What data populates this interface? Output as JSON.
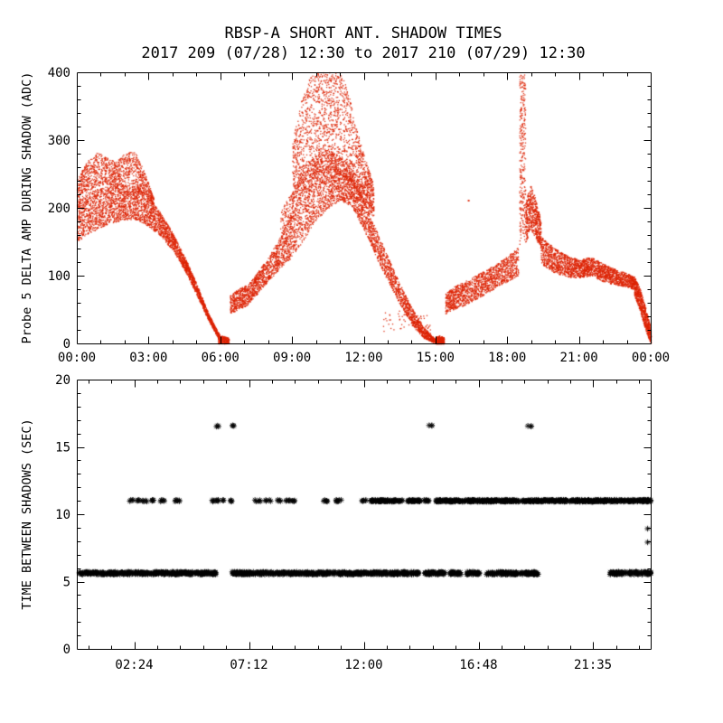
{
  "figure": {
    "background": "#ffffff",
    "axis_color": "#000000"
  },
  "chart_data": [
    {
      "type": "scatter",
      "panel": "top",
      "title": "RBSP-A SHORT ANT. SHADOW TIMES",
      "subtitle": "2017 209 (07/28) 12:30 to 2017 210 (07/29) 12:30",
      "ylabel": "Probe 5 DELTA AMP DURING SHADOW (ADC)",
      "xlabel": "",
      "xlim": [
        0,
        24
      ],
      "ylim": [
        0,
        400
      ],
      "xticks": [
        {
          "value": 0,
          "label": "00:00"
        },
        {
          "value": 3,
          "label": "03:00"
        },
        {
          "value": 6,
          "label": "06:00"
        },
        {
          "value": 9,
          "label": "09:00"
        },
        {
          "value": 12,
          "label": "12:00"
        },
        {
          "value": 15,
          "label": "15:00"
        },
        {
          "value": 18,
          "label": "18:00"
        },
        {
          "value": 21,
          "label": "21:00"
        },
        {
          "value": 24,
          "label": "00:00"
        }
      ],
      "yticks": [
        {
          "value": 0,
          "label": "0"
        },
        {
          "value": 100,
          "label": "100"
        },
        {
          "value": 200,
          "label": "200"
        },
        {
          "value": 300,
          "label": "300"
        },
        {
          "value": 400,
          "label": "400"
        }
      ],
      "x_minor_step": 1,
      "y_minor_step": 20,
      "marker": "dot",
      "color": "#dd2200",
      "bands": [
        {
          "x": [
            0,
            0.5,
            1,
            1.5,
            2,
            2.5,
            3,
            3.5,
            4,
            4.5,
            5,
            5.5,
            6
          ],
          "lo": [
            150,
            163,
            172,
            178,
            183,
            183,
            173,
            158,
            138,
            108,
            72,
            34,
            2
          ],
          "hi": [
            213,
            224,
            230,
            234,
            234,
            232,
            218,
            192,
            163,
            128,
            88,
            44,
            10
          ],
          "n": 3200
        },
        {
          "x": [
            0,
            0.4,
            0.8,
            1.2,
            1.6,
            2,
            2.4,
            2.8,
            3.2
          ],
          "lo": [
            213,
            224,
            232,
            236,
            234,
            232,
            230,
            220,
            205
          ],
          "hi": [
            242,
            268,
            284,
            276,
            268,
            281,
            285,
            255,
            215
          ],
          "n": 1100
        },
        {
          "x": [
            5.9,
            6.1,
            6.35
          ],
          "lo": [
            0,
            0,
            0
          ],
          "hi": [
            10,
            12,
            8
          ],
          "n": 240
        },
        {
          "x": [
            6.4,
            6.7,
            7.05
          ],
          "lo": [
            44,
            50,
            55
          ],
          "hi": [
            72,
            80,
            86
          ],
          "n": 330
        },
        {
          "x": [
            7.05,
            7.5,
            8,
            8.5,
            9,
            9.5,
            10,
            10.5,
            11,
            11.5,
            12,
            12.5,
            13,
            13.5,
            14,
            14.5,
            15
          ],
          "lo": [
            55,
            72,
            92,
            112,
            128,
            155,
            182,
            200,
            212,
            202,
            168,
            128,
            92,
            58,
            28,
            8,
            0
          ],
          "hi": [
            82,
            103,
            128,
            158,
            196,
            236,
            258,
            263,
            258,
            243,
            213,
            168,
            128,
            88,
            53,
            24,
            6
          ],
          "n": 3800
        },
        {
          "x": [
            8.5,
            9,
            9.5,
            10,
            10.5,
            11,
            11.5,
            12,
            12.4
          ],
          "lo": [
            150,
            188,
            228,
            250,
            256,
            250,
            235,
            205,
            185
          ],
          "hi": [
            195,
            225,
            262,
            278,
            288,
            278,
            258,
            228,
            205
          ],
          "n": 700
        },
        {
          "x": [
            9,
            9.3,
            9.7,
            10,
            10.3,
            10.7,
            11,
            11.3,
            11.6,
            12,
            12.4
          ],
          "lo": [
            200,
            225,
            252,
            262,
            268,
            268,
            262,
            248,
            232,
            212,
            195
          ],
          "hi": [
            295,
            350,
            392,
            400,
            400,
            400,
            400,
            378,
            328,
            278,
            235
          ],
          "n": 1600
        },
        {
          "x": [
            12.8,
            13.6,
            14.9
          ],
          "lo": [
            18,
            22,
            14
          ],
          "hi": [
            48,
            52,
            40
          ],
          "n": 60
        },
        {
          "x": [
            15,
            15.15,
            15.35
          ],
          "lo": [
            0,
            0,
            0
          ],
          "hi": [
            10,
            12,
            9
          ],
          "n": 280
        },
        {
          "x": [
            15.4,
            15.75,
            16.1
          ],
          "lo": [
            44,
            50,
            55
          ],
          "hi": [
            74,
            84,
            90
          ],
          "n": 340
        },
        {
          "x": [
            16.1,
            16.6,
            17.1,
            17.6,
            18.1,
            18.45
          ],
          "lo": [
            55,
            64,
            74,
            84,
            94,
            100
          ],
          "hi": [
            90,
            99,
            109,
            119,
            132,
            142
          ],
          "n": 1000
        },
        {
          "x": [
            18.5,
            18.62,
            18.75
          ],
          "lo": [
            145,
            160,
            150
          ],
          "hi": [
            400,
            400,
            400
          ],
          "n": 300
        },
        {
          "x": [
            18.75,
            18.95,
            19.15,
            19.4
          ],
          "lo": [
            148,
            168,
            158,
            138
          ],
          "hi": [
            208,
            235,
            218,
            182
          ],
          "n": 550
        },
        {
          "x": [
            19.4,
            20,
            20.5,
            21,
            21.5,
            22,
            22.5,
            23,
            23.3
          ],
          "lo": [
            118,
            104,
            99,
            97,
            100,
            92,
            87,
            84,
            80
          ],
          "hi": [
            158,
            140,
            130,
            124,
            128,
            118,
            110,
            104,
            98
          ],
          "n": 2000
        },
        {
          "x": [
            23.3,
            23.55,
            23.75,
            23.95,
            24
          ],
          "lo": [
            72,
            48,
            22,
            4,
            0
          ],
          "hi": [
            100,
            80,
            56,
            28,
            12
          ],
          "n": 700
        }
      ],
      "points": [
        [
          16.35,
          212
        ]
      ]
    },
    {
      "type": "scatter",
      "panel": "bottom",
      "title": "",
      "ylabel": "TIME BETWEEN SHADOWS (SEC)",
      "xlabel": "",
      "xlim": [
        0,
        24
      ],
      "ylim": [
        0,
        20
      ],
      "xticks": [
        {
          "value": 2.4,
          "label": "02:24"
        },
        {
          "value": 7.2,
          "label": "07:12"
        },
        {
          "value": 12,
          "label": "12:00"
        },
        {
          "value": 16.8,
          "label": "16:48"
        },
        {
          "value": 21.583,
          "label": "21:35"
        }
      ],
      "yticks": [
        {
          "value": 0,
          "label": "0"
        },
        {
          "value": 5,
          "label": "5"
        },
        {
          "value": 10,
          "label": "10"
        },
        {
          "value": 15,
          "label": "15"
        },
        {
          "value": 20,
          "label": "20"
        }
      ],
      "x_minor_step": 0.96,
      "y_minor_step": 1,
      "marker": "asterisk",
      "marker_size": 3.2,
      "color": "#000000",
      "clusters": [
        {
          "x0": 0.08,
          "x1": 5.82,
          "y": 5.62,
          "jitter": 0.1,
          "n": 340
        },
        {
          "x0": 6.5,
          "x1": 14.3,
          "y": 5.62,
          "jitter": 0.1,
          "n": 460
        },
        {
          "x0": 14.55,
          "x1": 15.4,
          "y": 5.62,
          "jitter": 0.1,
          "n": 55
        },
        {
          "x0": 15.6,
          "x1": 16.1,
          "y": 5.62,
          "jitter": 0.1,
          "n": 34
        },
        {
          "x0": 16.3,
          "x1": 16.85,
          "y": 5.62,
          "jitter": 0.1,
          "n": 36
        },
        {
          "x0": 17.1,
          "x1": 19.3,
          "y": 5.62,
          "jitter": 0.1,
          "n": 135
        },
        {
          "x0": 22.3,
          "x1": 23.0,
          "y": 5.62,
          "jitter": 0.1,
          "n": 45
        },
        {
          "x0": 23.1,
          "x1": 23.5,
          "y": 5.62,
          "jitter": 0.1,
          "n": 28
        },
        {
          "x0": 23.55,
          "x1": 24,
          "y": 5.62,
          "jitter": 0.1,
          "n": 30
        },
        {
          "x0": 2.2,
          "x1": 2.35,
          "y": 11,
          "jitter": 0.06,
          "n": 4
        },
        {
          "x0": 2.5,
          "x1": 2.62,
          "y": 11,
          "jitter": 0.06,
          "n": 4
        },
        {
          "x0": 2.75,
          "x1": 2.95,
          "y": 11,
          "jitter": 0.06,
          "n": 5
        },
        {
          "x0": 3.1,
          "x1": 3.28,
          "y": 11,
          "jitter": 0.06,
          "n": 5
        },
        {
          "x0": 3.5,
          "x1": 3.68,
          "y": 11,
          "jitter": 0.06,
          "n": 5
        },
        {
          "x0": 4.1,
          "x1": 4.32,
          "y": 11,
          "jitter": 0.06,
          "n": 6
        },
        {
          "x0": 5.58,
          "x1": 5.92,
          "y": 11,
          "jitter": 0.06,
          "n": 8
        },
        {
          "x0": 6.1,
          "x1": 6.2,
          "y": 11,
          "jitter": 0.06,
          "n": 3
        },
        {
          "x0": 6.35,
          "x1": 6.52,
          "y": 11,
          "jitter": 0.06,
          "n": 4
        },
        {
          "x0": 7.45,
          "x1": 7.68,
          "y": 11,
          "jitter": 0.06,
          "n": 5
        },
        {
          "x0": 7.9,
          "x1": 8.12,
          "y": 11,
          "jitter": 0.06,
          "n": 5
        },
        {
          "x0": 8.35,
          "x1": 8.52,
          "y": 11,
          "jitter": 0.06,
          "n": 4
        },
        {
          "x0": 8.72,
          "x1": 8.92,
          "y": 11,
          "jitter": 0.06,
          "n": 5
        },
        {
          "x0": 9.02,
          "x1": 9.18,
          "y": 11,
          "jitter": 0.06,
          "n": 4
        },
        {
          "x0": 10.28,
          "x1": 10.52,
          "y": 11,
          "jitter": 0.06,
          "n": 6
        },
        {
          "x0": 10.8,
          "x1": 11.12,
          "y": 11,
          "jitter": 0.06,
          "n": 7
        },
        {
          "x0": 11.9,
          "x1": 12.12,
          "y": 11,
          "jitter": 0.06,
          "n": 6
        },
        {
          "x0": 12.3,
          "x1": 13.62,
          "y": 11,
          "jitter": 0.06,
          "n": 80
        },
        {
          "x0": 13.8,
          "x1": 14.38,
          "y": 11,
          "jitter": 0.06,
          "n": 36
        },
        {
          "x0": 14.52,
          "x1": 14.75,
          "y": 11,
          "jitter": 0.06,
          "n": 9
        },
        {
          "x0": 15.0,
          "x1": 24.0,
          "y": 11,
          "jitter": 0.07,
          "n": 540
        },
        {
          "x0": 5.78,
          "x1": 5.98,
          "y": 16.55,
          "jitter": 0.05,
          "n": 3
        },
        {
          "x0": 6.38,
          "x1": 6.58,
          "y": 16.55,
          "jitter": 0.05,
          "n": 3
        },
        {
          "x0": 14.72,
          "x1": 14.88,
          "y": 16.55,
          "jitter": 0.05,
          "n": 3
        },
        {
          "x0": 18.85,
          "x1": 19.02,
          "y": 16.55,
          "jitter": 0.05,
          "n": 3
        }
      ],
      "points": [
        [
          23.87,
          8.93
        ],
        [
          23.87,
          7.92
        ]
      ]
    }
  ]
}
